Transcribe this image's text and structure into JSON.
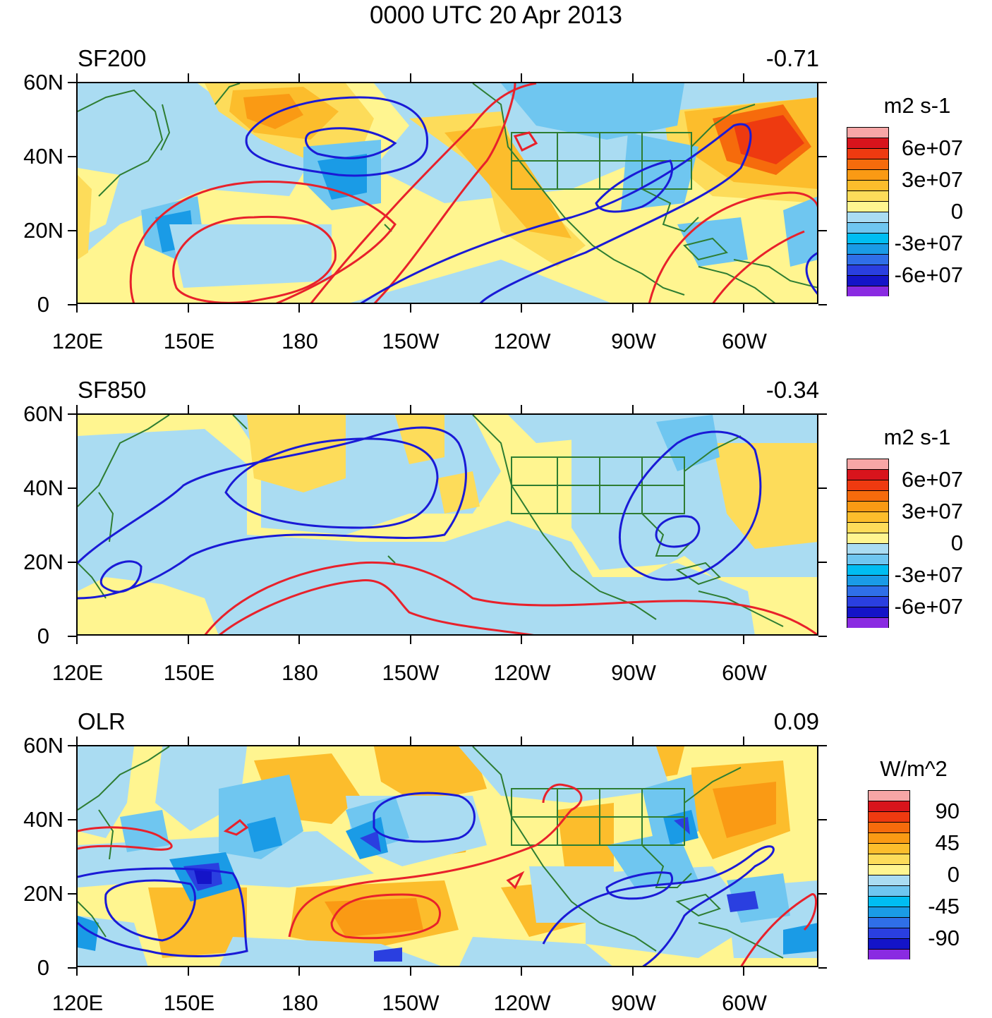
{
  "title": "0000 UTC 20 Apr 2013",
  "x_ticks": [
    "120E",
    "150E",
    "180",
    "150W",
    "120W",
    "90W",
    "60W"
  ],
  "y_ticks": [
    "60N",
    "40N",
    "20N",
    "0"
  ],
  "colors": {
    "coastline": "#2e7d32",
    "positive_contour": "#e8212b",
    "negative_contour": "#1a1ad6",
    "fill_scale": [
      "#8a2be2",
      "#1414c8",
      "#2a3fe0",
      "#2f6fe8",
      "#1a9be6",
      "#00bdf2",
      "#6fc6f0",
      "#aadcf2",
      "#fff590",
      "#fddc5a",
      "#fcbd2c",
      "#fa9a14",
      "#f66b0c",
      "#ee3a10",
      "#d8141c",
      "#f7a6a6"
    ]
  },
  "panels": [
    {
      "id": "sf200",
      "label": "SF200",
      "correlation": "-0.71",
      "colorbar": {
        "unit": "m2 s-1",
        "labels": [
          "6e+07",
          "3e+07",
          "0",
          "-3e+07",
          "-6e+07"
        ]
      }
    },
    {
      "id": "sf850",
      "label": "SF850",
      "correlation": "-0.34",
      "colorbar": {
        "unit": "m2 s-1",
        "labels": [
          "6e+07",
          "3e+07",
          "0",
          "-3e+07",
          "-6e+07"
        ]
      }
    },
    {
      "id": "olr",
      "label": "OLR",
      "correlation": "0.09",
      "colorbar": {
        "unit": "W/m^2",
        "labels": [
          "90",
          "45",
          "0",
          "-45",
          "-90"
        ]
      }
    }
  ]
}
